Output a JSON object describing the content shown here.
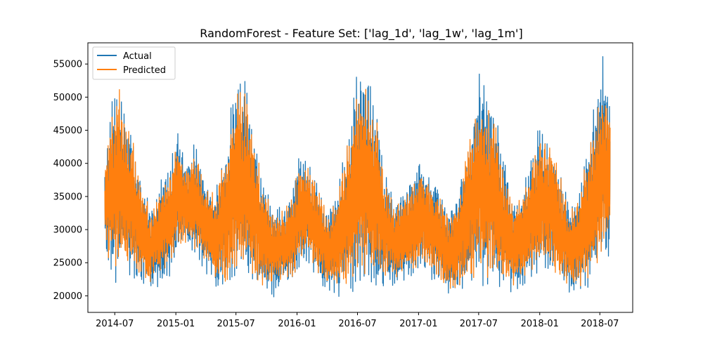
{
  "chart_data": {
    "type": "line",
    "title": "RandomForest - Feature Set: ['lag_1d', 'lag_1w', 'lag_1m']",
    "xlabel": "",
    "ylabel": "",
    "x_ticks": [
      "2014-07",
      "2015-01",
      "2015-07",
      "2016-01",
      "2016-07",
      "2017-01",
      "2017-07",
      "2018-01",
      "2018-07"
    ],
    "y_ticks": [
      20000,
      25000,
      30000,
      35000,
      40000,
      45000,
      50000,
      55000
    ],
    "ylim": [
      17500,
      58200
    ],
    "xlim": [
      "2014-04-11",
      "2018-10-08"
    ],
    "grid": false,
    "legend_position": "top-left",
    "colors": {
      "actual": "#1f77b4",
      "predicted": "#ff7f0e"
    },
    "series": [
      {
        "name": "Actual",
        "envelope": {
          "dates": [
            "2014-06-01",
            "2014-06-20",
            "2014-07-10",
            "2014-08-01",
            "2014-08-20",
            "2014-09-15",
            "2014-10-15",
            "2014-11-15",
            "2014-12-15",
            "2015-01-05",
            "2015-02-01",
            "2015-03-01",
            "2015-04-01",
            "2015-05-01",
            "2015-06-01",
            "2015-07-05",
            "2015-08-01",
            "2015-08-25",
            "2015-09-20",
            "2015-10-20",
            "2015-11-20",
            "2015-12-20",
            "2016-01-05",
            "2016-02-01",
            "2016-03-01",
            "2016-04-01",
            "2016-05-01",
            "2016-06-01",
            "2016-07-05",
            "2016-08-01",
            "2016-08-25",
            "2016-09-20",
            "2016-10-20",
            "2016-11-20",
            "2016-12-20",
            "2017-01-05",
            "2017-02-01",
            "2017-03-01",
            "2017-04-01",
            "2017-05-01",
            "2017-06-01",
            "2017-07-05",
            "2017-08-01",
            "2017-08-25",
            "2017-09-20",
            "2017-10-20",
            "2017-11-20",
            "2017-12-20",
            "2018-01-05",
            "2018-02-01",
            "2018-03-01",
            "2018-04-01",
            "2018-05-01",
            "2018-06-01",
            "2018-07-10",
            "2018-08-01"
          ],
          "high": [
            41000,
            50000,
            54500,
            49000,
            46000,
            39000,
            34500,
            38000,
            40000,
            46800,
            40500,
            44000,
            38000,
            36500,
            45000,
            55200,
            53000,
            47000,
            38000,
            33500,
            34000,
            37500,
            42000,
            41500,
            38000,
            33000,
            36000,
            45000,
            56500,
            54500,
            50000,
            40000,
            34500,
            37000,
            38500,
            41500,
            39000,
            37500,
            33000,
            36000,
            46500,
            55300,
            51000,
            48500,
            40000,
            34500,
            38500,
            44500,
            47000,
            44500,
            40000,
            33500,
            36500,
            46000,
            56600,
            49500
          ],
          "low": [
            26500,
            20200,
            22000,
            23000,
            22500,
            21500,
            20200,
            21000,
            22500,
            24500,
            27000,
            25000,
            23000,
            20500,
            19800,
            21500,
            21500,
            20500,
            20000,
            19500,
            20500,
            21500,
            23000,
            24500,
            22000,
            20000,
            19300,
            19800,
            20500,
            20200,
            20000,
            20500,
            21000,
            21500,
            22500,
            23500,
            22000,
            21000,
            19300,
            20000,
            20500,
            21000,
            20200,
            20500,
            20000,
            20000,
            20500,
            22000,
            22500,
            23000,
            21000,
            20000,
            20000,
            20300,
            24500,
            25500
          ]
        }
      },
      {
        "name": "Predicted",
        "envelope": {
          "dates": [
            "2014-06-01",
            "2014-06-20",
            "2014-07-10",
            "2014-08-01",
            "2014-08-20",
            "2014-09-15",
            "2014-10-15",
            "2014-11-15",
            "2014-12-15",
            "2015-01-05",
            "2015-02-01",
            "2015-03-01",
            "2015-04-01",
            "2015-05-01",
            "2015-06-01",
            "2015-07-05",
            "2015-08-01",
            "2015-08-25",
            "2015-09-20",
            "2015-10-20",
            "2015-11-20",
            "2015-12-20",
            "2016-01-05",
            "2016-02-01",
            "2016-03-01",
            "2016-04-01",
            "2016-05-01",
            "2016-06-01",
            "2016-07-05",
            "2016-08-01",
            "2016-08-25",
            "2016-09-20",
            "2016-10-20",
            "2016-11-20",
            "2016-12-20",
            "2017-01-05",
            "2017-02-01",
            "2017-03-01",
            "2017-04-01",
            "2017-05-01",
            "2017-06-01",
            "2017-07-05",
            "2017-08-01",
            "2017-08-25",
            "2017-09-20",
            "2017-10-20",
            "2017-11-20",
            "2017-12-20",
            "2018-01-05",
            "2018-02-01",
            "2018-03-01",
            "2018-04-01",
            "2018-05-01",
            "2018-06-01",
            "2018-07-10",
            "2018-08-01"
          ],
          "high": [
            40000,
            48500,
            53000,
            48000,
            45000,
            38000,
            33500,
            37000,
            39500,
            44500,
            39500,
            42500,
            37000,
            35500,
            43500,
            52000,
            51000,
            45000,
            37000,
            33000,
            33000,
            36500,
            40500,
            40500,
            37000,
            32500,
            35000,
            44000,
            52500,
            52500,
            48500,
            39000,
            33500,
            36000,
            37500,
            40500,
            38000,
            36500,
            32500,
            35500,
            45500,
            50500,
            49000,
            47000,
            39000,
            34000,
            37500,
            43500,
            45500,
            43500,
            39000,
            33000,
            35500,
            44500,
            53500,
            48500
          ],
          "low": [
            27000,
            22500,
            23500,
            24500,
            24000,
            22500,
            21000,
            22500,
            24000,
            26000,
            28000,
            26500,
            24500,
            21500,
            21000,
            22500,
            22500,
            21500,
            21000,
            21000,
            22000,
            22500,
            24000,
            25500,
            23000,
            21000,
            20800,
            21000,
            22000,
            22000,
            21500,
            21500,
            22000,
            22500,
            23500,
            24500,
            23000,
            22000,
            20800,
            21000,
            21500,
            22000,
            21500,
            21500,
            21000,
            21000,
            21500,
            23000,
            23500,
            24000,
            22000,
            21000,
            21000,
            21500,
            25500,
            26500
          ]
        }
      }
    ]
  }
}
